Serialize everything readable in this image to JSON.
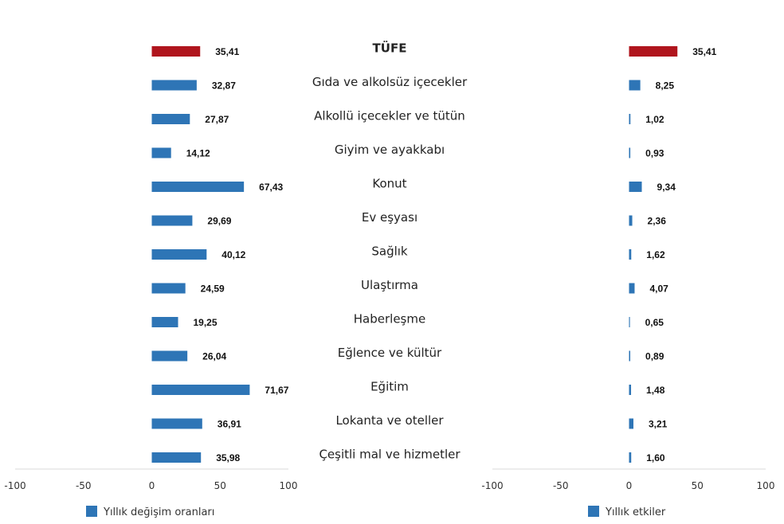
{
  "chart_data": [
    {
      "type": "bar",
      "orientation": "horizontal",
      "categories": [
        "TÜFE",
        "Gıda ve alkolsüz içecekler",
        "Alkollü içecekler ve tütün",
        "Giyim ve ayakkabı",
        "Konut",
        "Ev eşyası",
        "Sağlık",
        "Ulaştırma",
        "Haberleşme",
        "Eğlence ve kültür",
        "Eğitim",
        "Lokanta ve oteller",
        "Çeşitli mal ve hizmetler"
      ],
      "series": [
        {
          "name": "Yıllık değişim oranları",
          "values": [
            35.41,
            32.87,
            27.87,
            14.12,
            67.43,
            29.69,
            40.12,
            24.59,
            19.25,
            26.04,
            71.67,
            36.91,
            35.98
          ],
          "value_labels": [
            "35,41",
            "32,87",
            "27,87",
            "14,12",
            "67,43",
            "29,69",
            "40,12",
            "24,59",
            "19,25",
            "26,04",
            "71,67",
            "36,91",
            "35,98"
          ]
        }
      ],
      "xlim": [
        -100,
        100
      ],
      "x_ticks": [
        -100,
        -50,
        0,
        50,
        100
      ],
      "legend_position": "bottom-left",
      "grid": false
    },
    {
      "type": "bar",
      "orientation": "horizontal",
      "categories": [
        "TÜFE",
        "Gıda ve alkolsüz içecekler",
        "Alkollü içecekler ve tütün",
        "Giyim ve ayakkabı",
        "Konut",
        "Ev eşyası",
        "Sağlık",
        "Ulaştırma",
        "Haberleşme",
        "Eğlence ve kültür",
        "Eğitim",
        "Lokanta ve oteller",
        "Çeşitli mal ve hizmetler"
      ],
      "series": [
        {
          "name": "Yıllık etkiler",
          "values": [
            35.41,
            8.25,
            1.02,
            0.93,
            9.34,
            2.36,
            1.62,
            4.07,
            0.65,
            0.89,
            1.48,
            3.21,
            1.6
          ],
          "value_labels": [
            "35,41",
            "8,25",
            "1,02",
            "0,93",
            "9,34",
            "2,36",
            "1,62",
            "4,07",
            "0,65",
            "0,89",
            "1,48",
            "3,21",
            "1,60"
          ]
        }
      ],
      "xlim": [
        -100,
        100
      ],
      "x_ticks": [
        -100,
        -50,
        0,
        50,
        100
      ],
      "legend_position": "bottom-right",
      "grid": false
    }
  ],
  "colors": {
    "total_bar": "#b0151d",
    "category_bar": "#2e75b6"
  },
  "highlight_category": "TÜFE"
}
